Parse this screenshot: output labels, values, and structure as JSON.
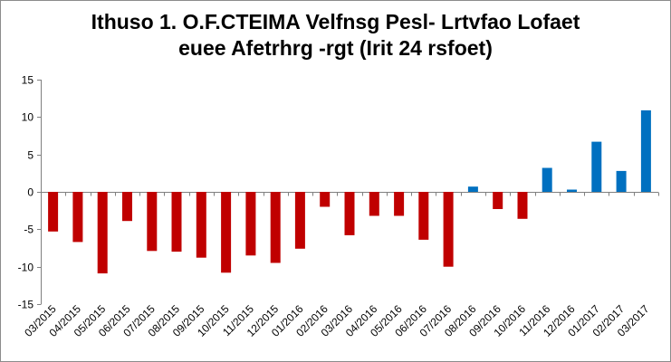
{
  "chart_data": {
    "type": "bar",
    "title": [
      "Ithuso 1. O.F.CTEIMA Velfnsg Pesl- Lrtvfao Lofaet",
      "euee Afetrhrg -rgt (Irit 24 rsfoet)"
    ],
    "xlabel": "",
    "ylabel": "",
    "ylim": [
      -15,
      15
    ],
    "yticks": [
      -15,
      -10,
      -5,
      0,
      5,
      10,
      15
    ],
    "grid": false,
    "legend": "none",
    "categories": [
      "03/2015",
      "04/2015",
      "05/2015",
      "06/2015",
      "07/2015",
      "08/2015",
      "09/2015",
      "10/2015",
      "11/2015",
      "12/2015",
      "01/2016",
      "02/2016",
      "03/2016",
      "04/2016",
      "05/2016",
      "06/2016",
      "07/2016",
      "08/2016",
      "09/2016",
      "10/2016",
      "11/2016",
      "12/2016",
      "01/2017",
      "02/2017",
      "03/2017"
    ],
    "values": [
      -5.3,
      -6.7,
      -10.9,
      -3.9,
      -7.9,
      -8.0,
      -8.8,
      -10.8,
      -8.5,
      -9.5,
      -7.6,
      -2.0,
      -5.8,
      -3.2,
      -3.2,
      -6.4,
      -10.0,
      0.7,
      -2.3,
      -3.6,
      3.2,
      0.3,
      6.7,
      2.8,
      10.9
    ],
    "colors": {
      "negative": "#c00000",
      "positive": "#0070c0",
      "axis": "#808080"
    }
  }
}
